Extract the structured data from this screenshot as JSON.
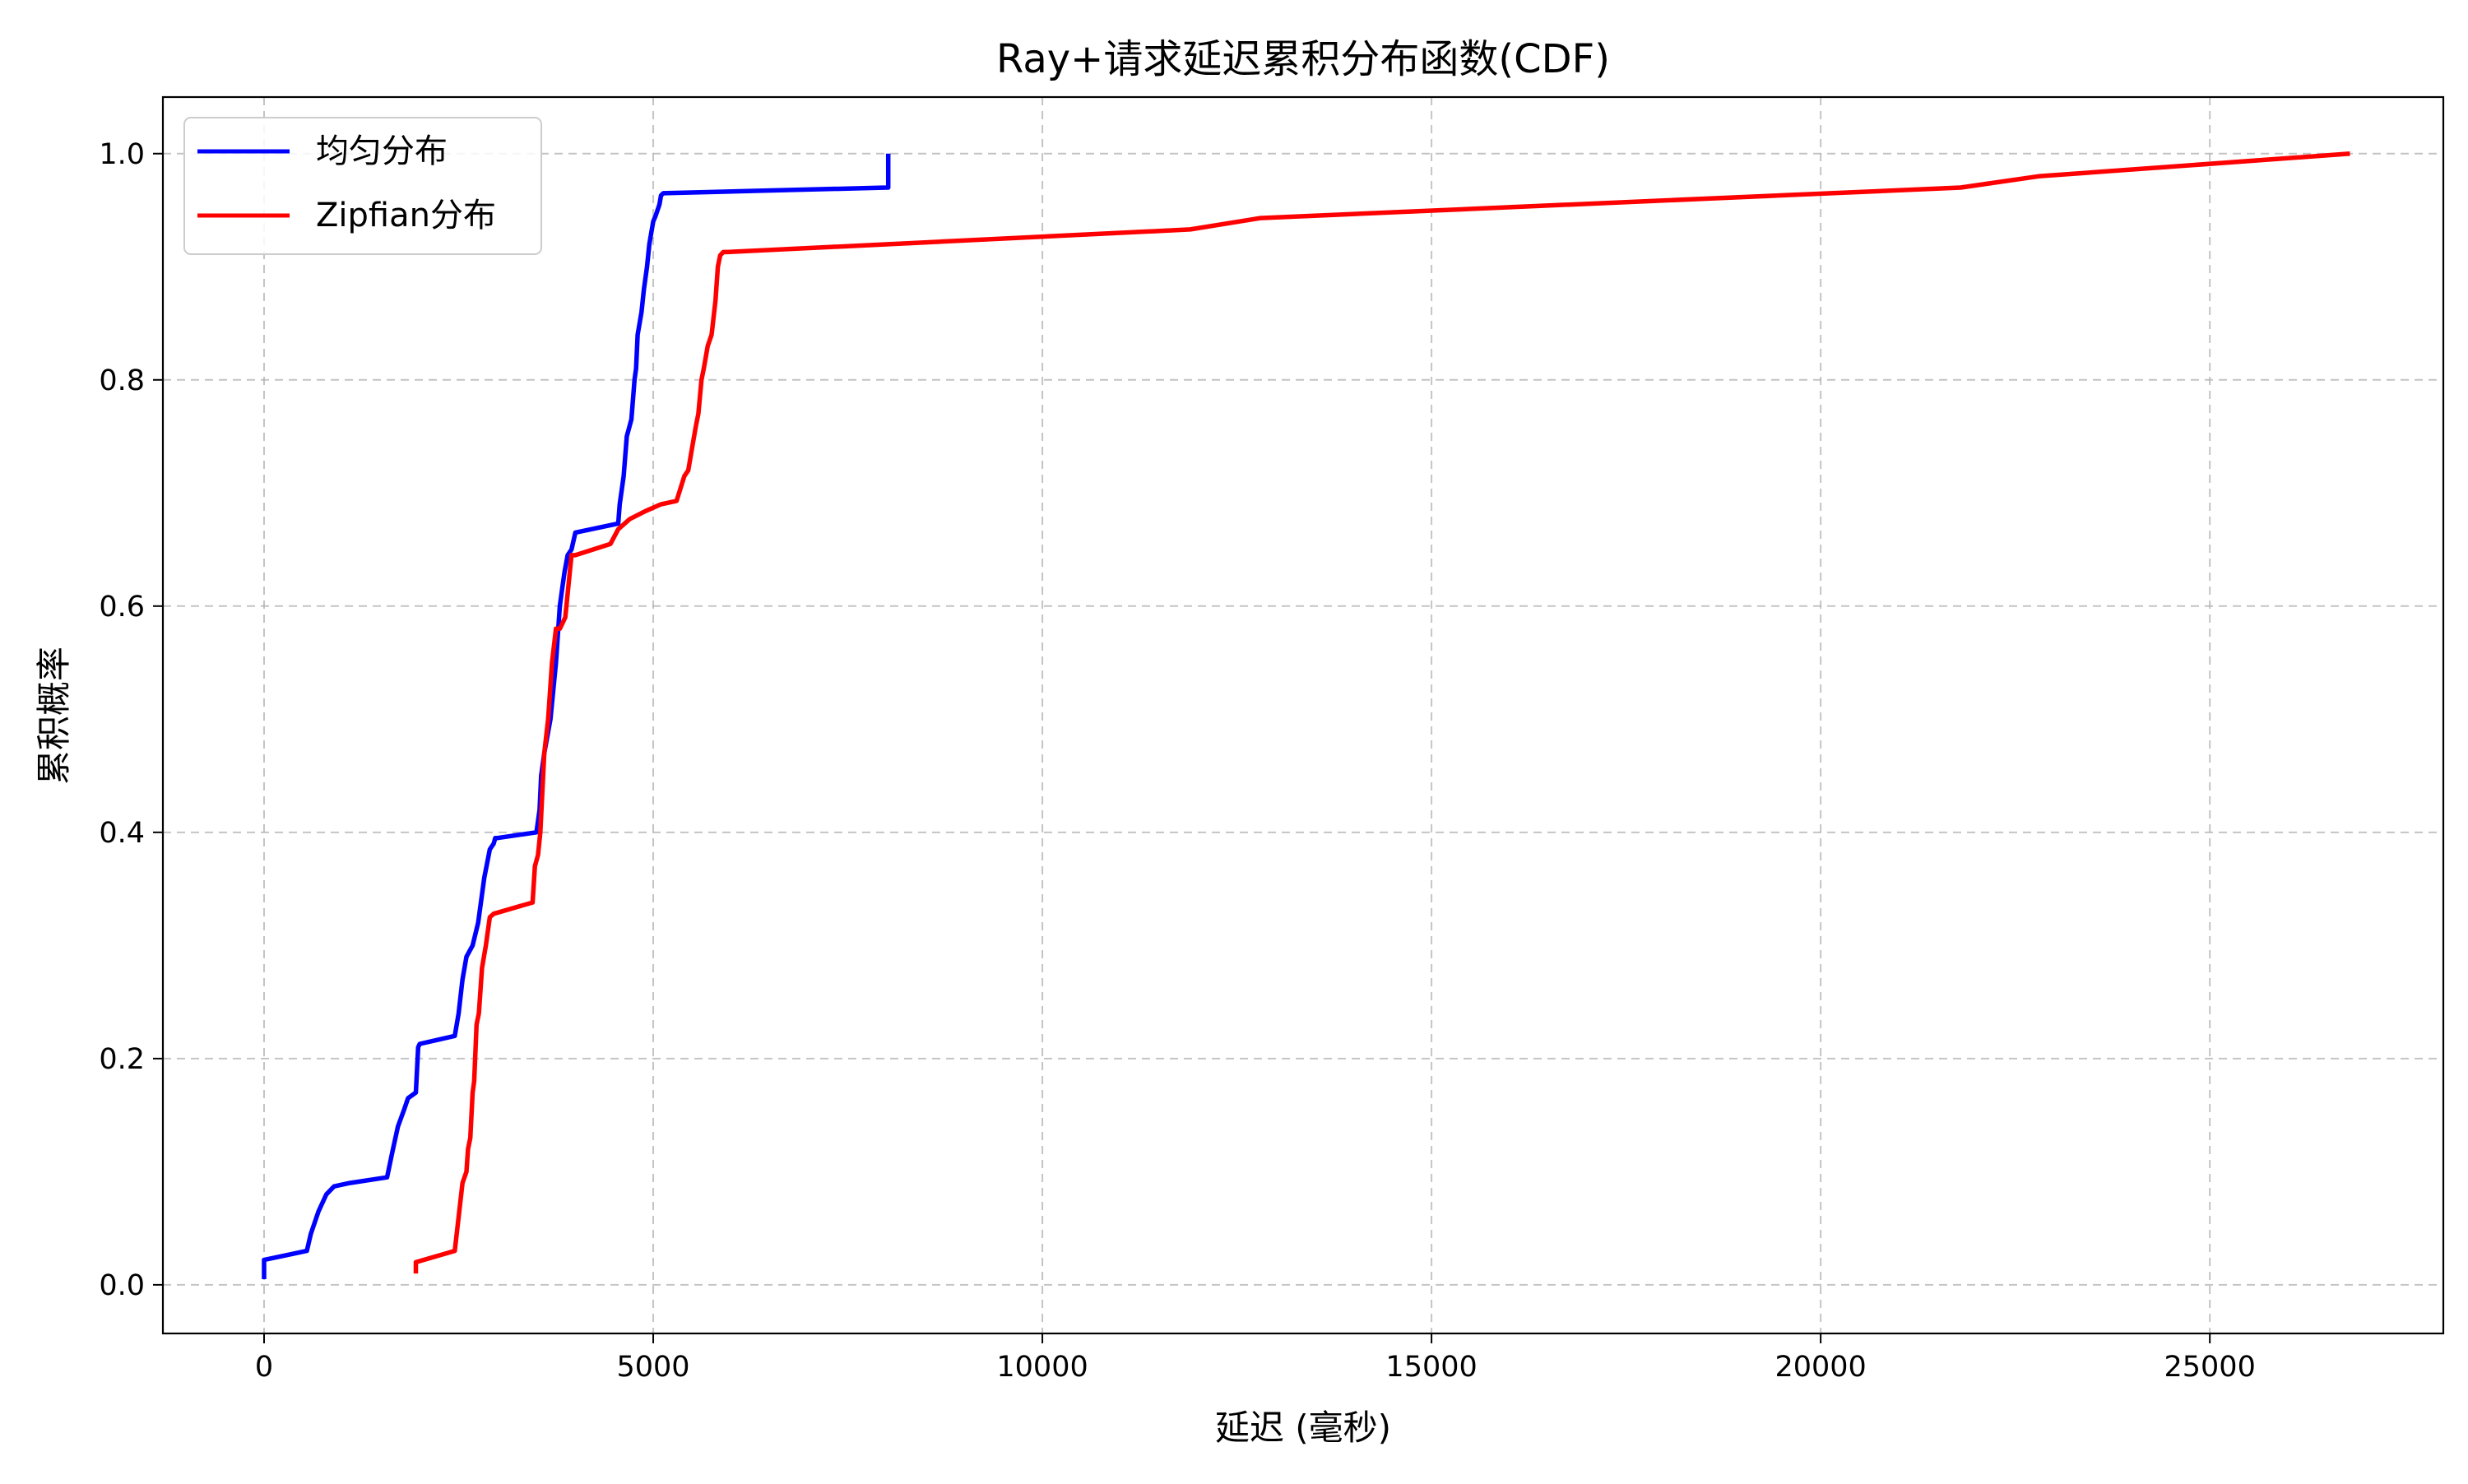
{
  "chart_data": {
    "type": "line",
    "title": "Ray+请求延迟累积分布函数(CDF)",
    "xlabel": "延迟 (毫秒)",
    "ylabel": "累积概率",
    "xlim": [
      -1300,
      28000
    ],
    "ylim": [
      -0.043,
      1.05
    ],
    "xticks": [
      0,
      5000,
      10000,
      15000,
      20000,
      25000
    ],
    "yticks": [
      0.0,
      0.2,
      0.4,
      0.6,
      0.8,
      1.0
    ],
    "xtick_labels": [
      "0",
      "5000",
      "10000",
      "15000",
      "20000",
      "25000"
    ],
    "ytick_labels": [
      "0.0",
      "0.2",
      "0.4",
      "0.6",
      "0.8",
      "1.0"
    ],
    "grid": true,
    "legend_position": "top-left",
    "series": [
      {
        "name": "均匀分布",
        "color": "#0000ff",
        "x": [
          0,
          0,
          550,
          600,
          700,
          800,
          900,
          1100,
          1580,
          1650,
          1720,
          1800,
          1850,
          1950,
          1980,
          2000,
          2450,
          2500,
          2550,
          2600,
          2680,
          2750,
          2830,
          2900,
          2950,
          2970,
          3000,
          3500,
          3540,
          3560,
          3600,
          3680,
          3750,
          3800,
          3830,
          3860,
          3900,
          3950,
          4000,
          4550,
          4570,
          4620,
          4660,
          4720,
          4760,
          4780,
          4800,
          4850,
          4880,
          4920,
          4950,
          5000,
          5030,
          5080,
          5100,
          5130,
          8000,
          8020,
          8020
        ],
        "y": [
          0.005,
          0.022,
          0.03,
          0.045,
          0.065,
          0.08,
          0.087,
          0.09,
          0.095,
          0.118,
          0.14,
          0.155,
          0.165,
          0.17,
          0.21,
          0.213,
          0.22,
          0.24,
          0.27,
          0.29,
          0.3,
          0.32,
          0.36,
          0.385,
          0.39,
          0.395,
          0.395,
          0.4,
          0.42,
          0.45,
          0.47,
          0.5,
          0.55,
          0.6,
          0.615,
          0.63,
          0.645,
          0.65,
          0.665,
          0.673,
          0.69,
          0.715,
          0.75,
          0.765,
          0.8,
          0.81,
          0.84,
          0.86,
          0.88,
          0.9,
          0.92,
          0.94,
          0.945,
          0.955,
          0.963,
          0.965,
          0.97,
          0.97,
          1.0
        ]
      },
      {
        "name": "Zipfian分布",
        "color": "#ff0000",
        "x": [
          1950,
          1950,
          2450,
          2500,
          2550,
          2600,
          2620,
          2650,
          2680,
          2700,
          2730,
          2760,
          2800,
          2850,
          2900,
          2950,
          3450,
          3480,
          3520,
          3550,
          3600,
          3650,
          3700,
          3750,
          3800,
          3870,
          3950,
          4000,
          4450,
          4550,
          4700,
          4900,
          5100,
          5300,
          5400,
          5450,
          5500,
          5550,
          5580,
          5620,
          5650,
          5700,
          5750,
          5800,
          5830,
          5860,
          5900,
          5950,
          11900,
          12800,
          21800,
          22800,
          26800
        ],
        "y": [
          0.01,
          0.02,
          0.03,
          0.06,
          0.09,
          0.1,
          0.12,
          0.13,
          0.17,
          0.18,
          0.23,
          0.24,
          0.28,
          0.3,
          0.325,
          0.328,
          0.338,
          0.37,
          0.38,
          0.4,
          0.47,
          0.5,
          0.55,
          0.58,
          0.58,
          0.59,
          0.645,
          0.645,
          0.655,
          0.668,
          0.677,
          0.684,
          0.69,
          0.693,
          0.715,
          0.72,
          0.74,
          0.76,
          0.77,
          0.8,
          0.81,
          0.83,
          0.84,
          0.87,
          0.9,
          0.91,
          0.913,
          0.913,
          0.933,
          0.943,
          0.97,
          0.98,
          1.0
        ]
      }
    ]
  }
}
